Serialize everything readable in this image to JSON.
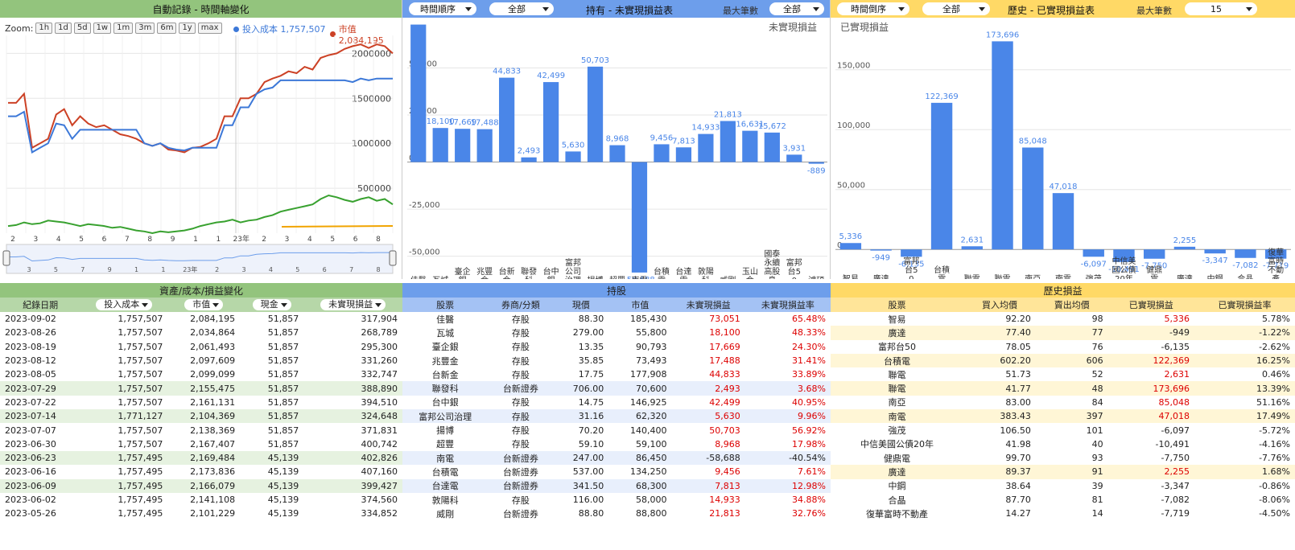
{
  "colors": {
    "green": "#93c47d",
    "blue": "#6d9eeb",
    "yellow": "#ffd966",
    "bar": "#4a86e8",
    "red_line": "#cc4125",
    "blue_line": "#3c78d8",
    "green_line": "#38a12f",
    "orange_line": "#f1a400"
  },
  "left": {
    "title": "自動記錄 - 時間軸變化",
    "zoom_label": "Zoom:",
    "zoom_buttons": [
      "1h",
      "1d",
      "5d",
      "1w",
      "1m",
      "3m",
      "6m",
      "1y",
      "max"
    ],
    "legend_cost": "投入成本 1,757,507",
    "legend_value": "市值 2,084,195",
    "y_ticks": [
      "2000000",
      "1500000",
      "1000000",
      "500000"
    ],
    "x_ticks": [
      "2",
      "3",
      "4",
      "5",
      "6",
      "7",
      "8",
      "9",
      "1",
      "1",
      "23年",
      "2",
      "3",
      "4",
      "5",
      "6",
      "8"
    ],
    "nav_ticks": [
      "3",
      "5",
      "7",
      "9",
      "1",
      "1",
      "23年",
      "2",
      "3",
      "4",
      "5",
      "6",
      "7",
      "8"
    ]
  },
  "mid": {
    "title": "持有 - 未實現損益表",
    "sort_select": "時間順序",
    "filter_select": "全部",
    "max_label": "最大筆數",
    "max_select": "全部",
    "series_name": "未實現損益",
    "y_ticks": [
      "50,000",
      "25,000",
      "0",
      "-25,000",
      "-50,000"
    ]
  },
  "right": {
    "title": "歷史 - 已實現損益表",
    "sort_select": "時間倒序",
    "filter_select": "全部",
    "max_label": "最大筆數",
    "max_select": "15",
    "series_name": "已實現損益",
    "y_ticks": [
      "150,000",
      "100,000",
      "50,000",
      "0"
    ]
  },
  "chart_data": [
    {
      "type": "line",
      "title": "自動記錄 - 時間軸變化",
      "series": [
        {
          "name": "投入成本",
          "latest": 1757507
        },
        {
          "name": "市值",
          "latest": 2084195
        }
      ],
      "ylim": [
        0,
        2200000
      ]
    },
    {
      "type": "bar",
      "title": "持有 - 未實現損益表",
      "categories": [
        "佳醫",
        "瓦城",
        "臺企銀",
        "兆豐金",
        "台新金",
        "聯發科",
        "台中銀",
        "富邦公司治理",
        "揚博",
        "超豐",
        "南電",
        "台積電",
        "台達電",
        "敦陽科",
        "威剛",
        "玉山金",
        "國泰永續高股息",
        "富邦台50",
        "鴻碩"
      ],
      "values": [
        73051,
        18100,
        17669,
        17488,
        44833,
        2493,
        42499,
        5630,
        50703,
        8968,
        -58688,
        9456,
        7813,
        14933,
        21813,
        16631,
        15672,
        3931,
        -889
      ],
      "labels": [
        "",
        "18,100",
        "17,669",
        "17,488",
        "44,833",
        "2,493",
        "42,499",
        "5,630",
        "50,703",
        "8,968",
        "-58,688",
        "9,456",
        "7,813",
        "14,933",
        "21,813",
        "16,631",
        "15,672",
        "3,931",
        "-889"
      ],
      "ylim": [
        -60000,
        75000
      ]
    },
    {
      "type": "bar",
      "title": "歷史 - 已實現損益表",
      "categories": [
        "智易",
        "廣達",
        "富邦台50",
        "台積電",
        "聯電",
        "聯電",
        "南亞",
        "南電",
        "強茂",
        "中信美國公債20年",
        "健鼎電",
        "廣達",
        "中鋼",
        "合晶",
        "復華富時不動產"
      ],
      "values": [
        5336,
        -949,
        -6135,
        122369,
        2631,
        173696,
        85048,
        47018,
        -6097,
        -10491,
        -7750,
        2255,
        -3347,
        -7082,
        -7719
      ],
      "labels": [
        "5,336",
        "-949",
        "-6,135",
        "122,369",
        "2,631",
        "173,696",
        "85,048",
        "47,018",
        "-6,097",
        "-10,491",
        "-7,750",
        "2,255",
        "-3,347",
        "-7,082",
        "-7,719"
      ],
      "ylim": [
        -20000,
        180000
      ]
    }
  ],
  "table_left": {
    "title": "資產/成本/損益變化",
    "cols": [
      "紀錄日期",
      "投入成本",
      "市值",
      "現金",
      "未實現損益"
    ],
    "rows": [
      [
        "2023-09-02",
        "1,757,507",
        "2,084,195",
        "51,857",
        "317,904"
      ],
      [
        "2023-08-26",
        "1,757,507",
        "2,034,864",
        "51,857",
        "268,789"
      ],
      [
        "2023-08-19",
        "1,757,507",
        "2,061,493",
        "51,857",
        "295,300"
      ],
      [
        "2023-08-12",
        "1,757,507",
        "2,097,609",
        "51,857",
        "331,260"
      ],
      [
        "2023-08-05",
        "1,757,507",
        "2,099,099",
        "51,857",
        "332,747"
      ],
      [
        "2023-07-29",
        "1,757,507",
        "2,155,475",
        "51,857",
        "388,890"
      ],
      [
        "2023-07-22",
        "1,757,507",
        "2,161,131",
        "51,857",
        "394,510"
      ],
      [
        "2023-07-14",
        "1,771,127",
        "2,104,369",
        "51,857",
        "324,648"
      ],
      [
        "2023-07-07",
        "1,757,507",
        "2,138,369",
        "51,857",
        "371,831"
      ],
      [
        "2023-06-30",
        "1,757,507",
        "2,167,407",
        "51,857",
        "400,742"
      ],
      [
        "2023-06-23",
        "1,757,495",
        "2,169,484",
        "45,139",
        "402,826"
      ],
      [
        "2023-06-16",
        "1,757,495",
        "2,173,836",
        "45,139",
        "407,160"
      ],
      [
        "2023-06-09",
        "1,757,495",
        "2,166,079",
        "45,139",
        "399,427"
      ],
      [
        "2023-06-02",
        "1,757,495",
        "2,141,108",
        "45,139",
        "374,560"
      ],
      [
        "2023-05-26",
        "1,757,495",
        "2,101,229",
        "45,139",
        "334,852"
      ]
    ]
  },
  "table_mid": {
    "title": "持股",
    "cols": [
      "股票",
      "券商/分類",
      "現價",
      "市值",
      "未實現損益",
      "未實現損益率"
    ],
    "rows": [
      [
        "佳醫",
        "存股",
        "88.30",
        "185,430",
        "73,051",
        "65.48%"
      ],
      [
        "瓦城",
        "存股",
        "279.00",
        "55,800",
        "18,100",
        "48.33%"
      ],
      [
        "臺企銀",
        "存股",
        "13.35",
        "90,793",
        "17,669",
        "24.30%"
      ],
      [
        "兆豐金",
        "存股",
        "35.85",
        "73,493",
        "17,488",
        "31.41%"
      ],
      [
        "台新金",
        "存股",
        "17.75",
        "177,908",
        "44,833",
        "33.89%"
      ],
      [
        "聯發科",
        "台新證券",
        "706.00",
        "70,600",
        "2,493",
        "3.68%"
      ],
      [
        "台中銀",
        "存股",
        "14.75",
        "146,925",
        "42,499",
        "40.95%"
      ],
      [
        "富邦公司治理",
        "存股",
        "31.16",
        "62,320",
        "5,630",
        "9.96%"
      ],
      [
        "揚博",
        "存股",
        "70.20",
        "140,400",
        "50,703",
        "56.92%"
      ],
      [
        "超豐",
        "存股",
        "59.10",
        "59,100",
        "8,968",
        "17.98%"
      ],
      [
        "南電",
        "台新證券",
        "247.00",
        "86,450",
        "-58,688",
        "-40.54%"
      ],
      [
        "台積電",
        "台新證券",
        "537.00",
        "134,250",
        "9,456",
        "7.61%"
      ],
      [
        "台達電",
        "台新證券",
        "341.50",
        "68,300",
        "7,813",
        "12.98%"
      ],
      [
        "敦陽科",
        "存股",
        "116.00",
        "58,000",
        "14,933",
        "34.88%"
      ],
      [
        "威剛",
        "台新證券",
        "88.80",
        "88,800",
        "21,813",
        "32.76%"
      ]
    ]
  },
  "table_right": {
    "title": "歷史損益",
    "cols": [
      "股票",
      "買入均價",
      "賣出均價",
      "已實現損益",
      "已實現損益率"
    ],
    "rows": [
      [
        "智易",
        "92.20",
        "98",
        "5,336",
        "5.78%"
      ],
      [
        "廣達",
        "77.40",
        "77",
        "-949",
        "-1.22%"
      ],
      [
        "富邦台50",
        "78.05",
        "76",
        "-6,135",
        "-2.62%"
      ],
      [
        "台積電",
        "602.20",
        "606",
        "122,369",
        "16.25%"
      ],
      [
        "聯電",
        "51.73",
        "52",
        "2,631",
        "0.46%"
      ],
      [
        "聯電",
        "41.77",
        "48",
        "173,696",
        "13.39%"
      ],
      [
        "南亞",
        "83.00",
        "84",
        "85,048",
        "51.16%"
      ],
      [
        "南電",
        "383.43",
        "397",
        "47,018",
        "17.49%"
      ],
      [
        "強茂",
        "106.50",
        "101",
        "-6,097",
        "-5.72%"
      ],
      [
        "中信美國公債20年",
        "41.98",
        "40",
        "-10,491",
        "-4.16%"
      ],
      [
        "健鼎電",
        "99.70",
        "93",
        "-7,750",
        "-7.76%"
      ],
      [
        "廣達",
        "89.37",
        "91",
        "2,255",
        "1.68%"
      ],
      [
        "中鋼",
        "38.64",
        "39",
        "-3,347",
        "-0.86%"
      ],
      [
        "合晶",
        "87.70",
        "81",
        "-7,082",
        "-8.06%"
      ],
      [
        "復華富時不動產",
        "14.27",
        "14",
        "-7,719",
        "-4.50%"
      ]
    ]
  }
}
